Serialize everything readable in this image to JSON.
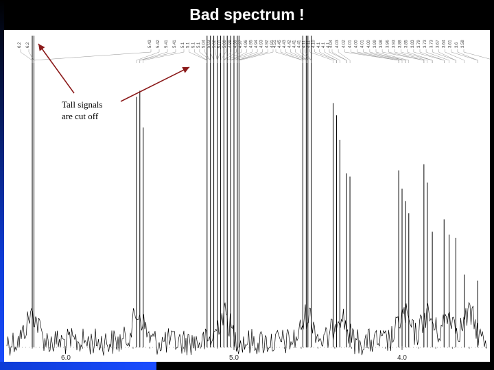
{
  "slide": {
    "title": "Bad spectrum !",
    "annotation": "Tall signals\nare cut off"
  },
  "chart_data": {
    "type": "line",
    "xaxis_direction": "reversed",
    "xlim": [
      6.3,
      3.4
    ],
    "x_ticks": [
      "6.0",
      "5.0",
      "4.0"
    ],
    "x_tick_values": [
      6.0,
      5.0,
      4.0
    ],
    "peak_labels": [
      "6.2",
      "6.2",
      "5.43",
      "5.42",
      "5.41",
      "5.41",
      "5.1",
      "5.1",
      "5.1",
      "5.1",
      "5.04",
      "5.03",
      "5.02",
      "5.01",
      "5.00",
      "4.99",
      "4.98",
      "4.97",
      "4.96",
      "4.95",
      "4.94",
      "4.93",
      "4.92",
      "4.91",
      "4.51",
      "4.45",
      "4.43",
      "4.42",
      "4.41",
      "4.41",
      "4.11",
      "4.11",
      "4.10",
      "4.1",
      "4.1",
      "4.1",
      "4.04",
      "4.03",
      "4.02",
      "4.01",
      "4.00",
      "4.01",
      "4.00",
      "3.99",
      "3.98",
      "3.96",
      "3.93",
      "3.88",
      "3.85",
      "3.83",
      "3.79",
      "3.73",
      "3.73",
      "3.67",
      "3.64",
      "3.61",
      "3.6",
      "3.58"
    ],
    "peaks": [
      {
        "x": 6.2,
        "height": 1.5
      },
      {
        "x": 6.19,
        "height": 1.5
      },
      {
        "x": 5.58,
        "height": 0.8
      },
      {
        "x": 5.56,
        "height": 0.82
      },
      {
        "x": 5.54,
        "height": 0.7
      },
      {
        "x": 5.16,
        "height": 1.5
      },
      {
        "x": 5.14,
        "height": 1.5
      },
      {
        "x": 5.12,
        "height": 1.5
      },
      {
        "x": 5.1,
        "height": 1.5
      },
      {
        "x": 5.08,
        "height": 1.5
      },
      {
        "x": 5.06,
        "height": 1.5
      },
      {
        "x": 5.04,
        "height": 1.5
      },
      {
        "x": 5.02,
        "height": 1.5
      },
      {
        "x": 5.0,
        "height": 1.5
      },
      {
        "x": 4.98,
        "height": 1.5
      },
      {
        "x": 4.97,
        "height": 1.5
      },
      {
        "x": 4.59,
        "height": 1.5
      },
      {
        "x": 4.57,
        "height": 1.5
      },
      {
        "x": 4.56,
        "height": 1.5
      },
      {
        "x": 4.54,
        "height": 1.5
      },
      {
        "x": 4.41,
        "height": 0.78
      },
      {
        "x": 4.39,
        "height": 0.74
      },
      {
        "x": 4.37,
        "height": 0.66
      },
      {
        "x": 4.33,
        "height": 0.55
      },
      {
        "x": 4.31,
        "height": 0.54
      },
      {
        "x": 4.02,
        "height": 0.56
      },
      {
        "x": 4.0,
        "height": 0.5
      },
      {
        "x": 3.98,
        "height": 0.46
      },
      {
        "x": 3.96,
        "height": 0.42
      },
      {
        "x": 3.87,
        "height": 0.58
      },
      {
        "x": 3.85,
        "height": 0.52
      },
      {
        "x": 3.82,
        "height": 0.36
      },
      {
        "x": 3.75,
        "height": 0.4
      },
      {
        "x": 3.72,
        "height": 0.35
      },
      {
        "x": 3.68,
        "height": 0.34
      },
      {
        "x": 3.63,
        "height": 0.22
      },
      {
        "x": 3.55,
        "height": 0.2
      },
      {
        "x": 3.45,
        "height": 0.18
      }
    ],
    "colors": {
      "trace": "#000000",
      "arrow": "#8b1a1a",
      "background": "#ffffff"
    }
  }
}
